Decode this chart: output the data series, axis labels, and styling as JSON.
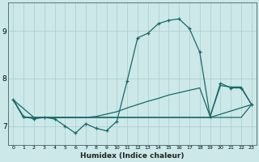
{
  "background_color": "#cce8e8",
  "grid_color": "#aacccc",
  "line_color": "#1a6868",
  "xlabel": "Humidex (Indice chaleur)",
  "xlim": [
    -0.5,
    23.5
  ],
  "ylim": [
    6.6,
    9.6
  ],
  "yticks": [
    7,
    8,
    9
  ],
  "xticks": [
    0,
    1,
    2,
    3,
    4,
    5,
    6,
    7,
    8,
    9,
    10,
    11,
    12,
    13,
    14,
    15,
    16,
    17,
    18,
    19,
    20,
    21,
    22,
    23
  ],
  "series1_x": [
    0,
    1,
    2,
    3,
    4,
    5,
    6,
    7,
    8,
    9,
    10,
    11,
    12,
    13,
    14,
    15,
    16,
    17,
    18,
    19,
    20,
    21,
    22,
    23
  ],
  "series1_y": [
    7.55,
    7.2,
    7.15,
    7.18,
    7.15,
    7.0,
    6.85,
    7.05,
    6.95,
    6.9,
    7.1,
    7.95,
    8.85,
    8.95,
    9.15,
    9.22,
    9.25,
    9.05,
    8.55,
    7.2,
    7.9,
    7.8,
    7.8,
    7.45
  ],
  "series2_x": [
    0,
    1,
    2,
    3,
    4,
    5,
    6,
    7,
    8,
    9,
    10,
    11,
    12,
    13,
    14,
    15,
    16,
    17,
    18,
    19,
    20,
    21,
    22,
    23
  ],
  "series2_y": [
    7.55,
    7.18,
    7.18,
    7.18,
    7.18,
    7.18,
    7.18,
    7.18,
    7.2,
    7.25,
    7.3,
    7.38,
    7.45,
    7.52,
    7.58,
    7.65,
    7.7,
    7.75,
    7.8,
    7.2,
    7.85,
    7.82,
    7.82,
    7.45
  ],
  "series3_x": [
    0,
    1,
    2,
    3,
    4,
    5,
    6,
    7,
    8,
    9,
    10,
    11,
    12,
    13,
    14,
    15,
    16,
    17,
    18,
    19,
    20,
    21,
    22,
    23
  ],
  "series3_y": [
    7.55,
    7.18,
    7.18,
    7.18,
    7.18,
    7.18,
    7.18,
    7.18,
    7.18,
    7.18,
    7.18,
    7.18,
    7.18,
    7.18,
    7.18,
    7.18,
    7.18,
    7.18,
    7.18,
    7.18,
    7.18,
    7.18,
    7.18,
    7.45
  ],
  "series4_x": [
    0,
    2,
    10,
    19,
    23
  ],
  "series4_y": [
    7.55,
    7.18,
    7.18,
    7.18,
    7.45
  ]
}
